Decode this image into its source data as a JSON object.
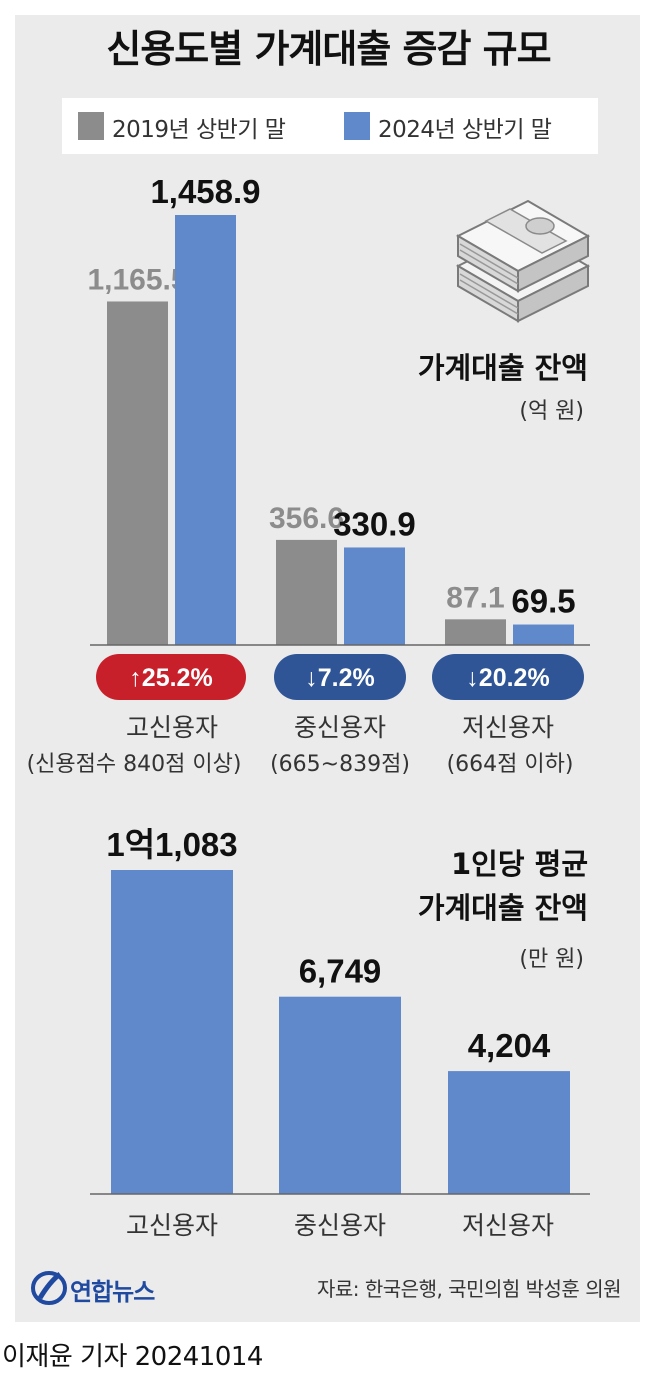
{
  "title": "신용도별 가계대출 증감 규모",
  "legend": [
    {
      "label": "2019년 상반기 말",
      "color": "#8c8c8c"
    },
    {
      "label": "2024년 상반기 말",
      "color": "#6089cb"
    }
  ],
  "colors": {
    "gray_bar": "#8c8c8c",
    "blue_bar": "#6089cb",
    "pill_up": "#c8202a",
    "pill_down": "#2f5596",
    "panel_bg": "#ebebeb"
  },
  "icon": "money-stack-icon",
  "chart_data": [
    {
      "type": "bar",
      "title": "가계대출 잔액",
      "unit": "(억 원)",
      "categories": [
        "고신용자",
        "중신용자",
        "저신용자"
      ],
      "category_subtitles": [
        "(신용점수 840점 이상)",
        "(665~839점)",
        "(664점 이하)"
      ],
      "series": [
        {
          "name": "2019년 상반기 말",
          "values": [
            1165.5,
            356.6,
            87.1
          ],
          "labels": [
            "1,165.5",
            "356.6",
            "87.1"
          ]
        },
        {
          "name": "2024년 상반기 말",
          "values": [
            1458.9,
            330.9,
            69.5
          ],
          "labels": [
            "1,458.9",
            "330.9",
            "69.5"
          ]
        }
      ],
      "changes": [
        {
          "label": "↑25.2%",
          "direction": "up"
        },
        {
          "label": "↓7.2%",
          "direction": "down"
        },
        {
          "label": "↓20.2%",
          "direction": "down"
        }
      ],
      "ylim": [
        0,
        1458.9
      ]
    },
    {
      "type": "bar",
      "title_lines": [
        "1인당 평균",
        "가계대출 잔액"
      ],
      "unit": "(만 원)",
      "categories": [
        "고신용자",
        "중신용자",
        "저신용자"
      ],
      "values": [
        11083,
        6749,
        4204
      ],
      "labels": [
        "1억1,083",
        "6,749",
        "4,204"
      ],
      "ylim": [
        0,
        11083
      ]
    }
  ],
  "footer": {
    "logo": "연합뉴스",
    "source": "자료: 한국은행, 국민의힘 박성훈 의원",
    "credit": "이재윤 기자 20241014"
  }
}
